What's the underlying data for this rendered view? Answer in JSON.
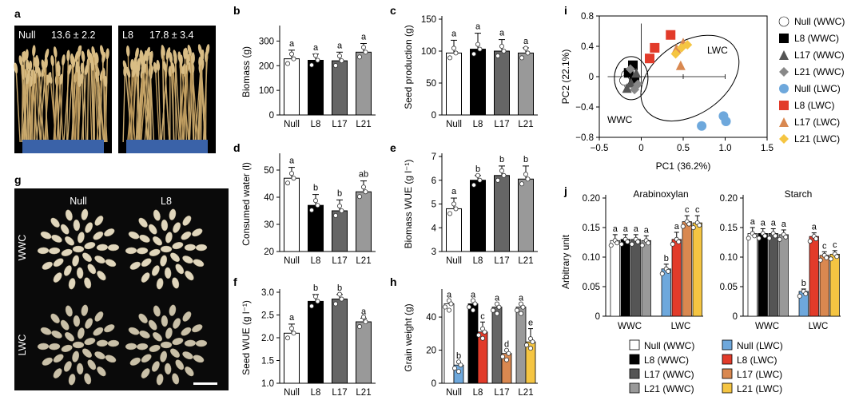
{
  "panels": {
    "a": {
      "label": "a",
      "left_name": "Null",
      "left_value": "13.6 ± 2.2",
      "right_name": "L8",
      "right_value": "17.8 ± 3.4"
    },
    "g": {
      "label": "g",
      "col_labels": [
        "Null",
        "L8"
      ],
      "row_labels": [
        "WWC",
        "LWC"
      ]
    }
  },
  "chart_data": [
    {
      "id": "b",
      "panel_label": "b",
      "type": "bar",
      "categories": [
        "Null",
        "L8",
        "L17",
        "L21"
      ],
      "values": [
        228,
        222,
        220,
        255
      ],
      "errors": [
        35,
        25,
        35,
        35
      ],
      "letters": [
        "a",
        "a",
        "a",
        "a"
      ],
      "ylabel": "Biomass (g)",
      "ylim": [
        0,
        350
      ],
      "yticks": [
        "0",
        "100",
        "200",
        "300"
      ],
      "colors": [
        "#ffffff",
        "#000000",
        "#666666",
        "#999999"
      ]
    },
    {
      "id": "c",
      "panel_label": "c",
      "type": "bar",
      "categories": [
        "Null",
        "L8",
        "L17",
        "L21"
      ],
      "values": [
        97,
        103,
        100,
        97
      ],
      "errors": [
        20,
        25,
        18,
        8
      ],
      "letters": [
        "a",
        "a",
        "a",
        "a"
      ],
      "ylabel": "Seed production (g)",
      "ylim": [
        0,
        150
      ],
      "yticks": [
        "0",
        "50",
        "100",
        "150"
      ],
      "colors": [
        "#ffffff",
        "#000000",
        "#666666",
        "#999999"
      ]
    },
    {
      "id": "d",
      "panel_label": "d",
      "type": "bar",
      "categories": [
        "Null",
        "L8",
        "L17",
        "L21"
      ],
      "values": [
        47,
        37,
        35,
        42
      ],
      "errors": [
        4,
        4,
        4,
        4
      ],
      "letters": [
        "a",
        "b",
        "b",
        "ab"
      ],
      "ylabel": "Consumed water (l)",
      "ylim": [
        20,
        55
      ],
      "yticks": [
        "20",
        "30",
        "40",
        "50"
      ],
      "colors": [
        "#ffffff",
        "#000000",
        "#666666",
        "#999999"
      ]
    },
    {
      "id": "e",
      "panel_label": "e",
      "type": "bar",
      "categories": [
        "Null",
        "L8",
        "L17",
        "L21"
      ],
      "values": [
        4.8,
        6.0,
        6.2,
        6.05
      ],
      "errors": [
        0.45,
        0.2,
        0.4,
        0.55
      ],
      "letters": [
        "a",
        "b",
        "b",
        "b"
      ],
      "ylabel": "Biomass WUE (g l⁻¹)",
      "ylim": [
        3,
        7
      ],
      "yticks": [
        "3",
        "4",
        "5",
        "6",
        "7"
      ],
      "colors": [
        "#ffffff",
        "#000000",
        "#666666",
        "#999999"
      ]
    },
    {
      "id": "f",
      "panel_label": "f",
      "type": "bar",
      "categories": [
        "Null",
        "L8",
        "L17",
        "L21"
      ],
      "values": [
        2.1,
        2.8,
        2.85,
        2.35
      ],
      "errors": [
        0.2,
        0.15,
        0.1,
        0.08
      ],
      "letters": [
        "a",
        "b",
        "b",
        "a"
      ],
      "ylabel": "Seed WUE (g l⁻¹)",
      "ylim": [
        1.0,
        3.0
      ],
      "yticks": [
        "1.0",
        "1.5",
        "2.0",
        "2.5",
        "3.0"
      ],
      "colors": [
        "#ffffff",
        "#000000",
        "#666666",
        "#999999"
      ]
    },
    {
      "id": "h",
      "panel_label": "h",
      "type": "bar",
      "categories": [
        "Null",
        "L8",
        "L17",
        "L21"
      ],
      "series": [
        {
          "name": "WWC",
          "values": [
            48,
            48,
            46,
            46
          ],
          "errors": [
            2,
            2,
            2,
            2
          ],
          "letters": [
            "a",
            "a",
            "a",
            "a"
          ],
          "colors": [
            "#ffffff",
            "#000000",
            "#666666",
            "#999999"
          ]
        },
        {
          "name": "LWC",
          "values": [
            11,
            31,
            18,
            25
          ],
          "errors": [
            2,
            6,
            2,
            8
          ],
          "letters": [
            "b",
            "c",
            "d",
            "e"
          ],
          "colors": [
            "#6ea8dc",
            "#e23b2a",
            "#d98850",
            "#f5c542"
          ]
        }
      ],
      "ylabel": "Grain weight (g)",
      "ylim": [
        0,
        55
      ],
      "yticks": [
        "0",
        "20",
        "40"
      ]
    },
    {
      "id": "i",
      "panel_label": "i",
      "type": "scatter",
      "xlabel": "PC1 (36.2%)",
      "ylabel": "PC2 (22.1%)",
      "xlim": [
        -0.5,
        1.5
      ],
      "ylim": [
        -0.8,
        0.8
      ],
      "xticks": [
        "−0.5",
        "0",
        "0.5",
        "1.0",
        "1.5"
      ],
      "yticks": [
        "−0.8",
        "−0.4",
        "0",
        "0.4",
        "0.8"
      ],
      "group_labels": [
        "WWC",
        "LWC"
      ],
      "series": [
        {
          "name": "Null (WWC)",
          "marker": "circle-open",
          "color": "#ffffff",
          "points": [
            [
              -0.18,
              0.02
            ],
            [
              -0.14,
              -0.12
            ],
            [
              -0.2,
              -0.05
            ]
          ]
        },
        {
          "name": "L8 (WWC)",
          "marker": "square",
          "color": "#000000",
          "points": [
            [
              -0.1,
              0.15
            ],
            [
              -0.15,
              0.05
            ],
            [
              -0.08,
              -0.03
            ]
          ]
        },
        {
          "name": "L17 (WWC)",
          "marker": "triangle",
          "color": "#555555",
          "points": [
            [
              -0.12,
              -0.08
            ],
            [
              -0.06,
              0.05
            ],
            [
              -0.17,
              -0.15
            ]
          ]
        },
        {
          "name": "L21 (WWC)",
          "marker": "diamond",
          "color": "#888888",
          "points": [
            [
              -0.08,
              -0.17
            ],
            [
              -0.13,
              0.1
            ],
            [
              -0.04,
              -0.1
            ]
          ]
        },
        {
          "name": "Null (LWC)",
          "marker": "circle",
          "color": "#6ea8dc",
          "points": [
            [
              0.72,
              -0.65
            ],
            [
              0.98,
              -0.52
            ],
            [
              1.01,
              -0.59
            ]
          ]
        },
        {
          "name": "L8 (LWC)",
          "marker": "square",
          "color": "#e23b2a",
          "points": [
            [
              0.1,
              0.24
            ],
            [
              0.16,
              0.38
            ],
            [
              0.35,
              0.55
            ]
          ]
        },
        {
          "name": "L17 (LWC)",
          "marker": "triangle",
          "color": "#d98850",
          "points": [
            [
              0.47,
              0.15
            ],
            [
              0.42,
              0.37
            ],
            [
              0.5,
              0.45
            ]
          ]
        },
        {
          "name": "L21 (LWC)",
          "marker": "diamond",
          "color": "#f5c542",
          "points": [
            [
              0.41,
              0.3
            ],
            [
              0.48,
              0.38
            ],
            [
              0.55,
              0.42
            ]
          ]
        }
      ]
    },
    {
      "id": "j",
      "panel_label": "j",
      "type": "bar",
      "ylabel": "Arbitrary unit",
      "ylim": [
        0,
        0.2
      ],
      "yticks": [
        "0",
        "0.05",
        "0.10",
        "0.15",
        "0.20"
      ],
      "group_labels": [
        "WWC",
        "LWC"
      ],
      "subplots": [
        {
          "title": "Arabinoxylan",
          "values": [
            0.128,
            0.13,
            0.13,
            0.128,
            0.08,
            0.13,
            0.16,
            0.158
          ],
          "errors": [
            0.01,
            0.008,
            0.008,
            0.008,
            0.008,
            0.012,
            0.01,
            0.012
          ],
          "letters": [
            "a",
            "a",
            "a",
            "a",
            "b",
            "a",
            "c",
            "c"
          ]
        },
        {
          "title": "Starch",
          "values": [
            0.14,
            0.14,
            0.14,
            0.138,
            0.042,
            0.135,
            0.103,
            0.105
          ],
          "errors": [
            0.01,
            0.008,
            0.008,
            0.008,
            0.004,
            0.006,
            0.006,
            0.006
          ],
          "letters": [
            "a",
            "a",
            "a",
            "a",
            "b",
            "a",
            "c",
            "c"
          ]
        }
      ],
      "colors": [
        "#ffffff",
        "#000000",
        "#555555",
        "#999999",
        "#6ea8dc",
        "#e23b2a",
        "#d98850",
        "#f5c542"
      ]
    }
  ],
  "legend": {
    "items": [
      "Null (WWC)",
      "L8 (WWC)",
      "L17 (WWC)",
      "L21 (WWC)",
      "Null (LWC)",
      "L8 (LWC)",
      "L17 (LWC)",
      "L21 (LWC)"
    ],
    "colors": [
      "#ffffff",
      "#000000",
      "#555555",
      "#999999",
      "#6ea8dc",
      "#e23b2a",
      "#d98850",
      "#f5c542"
    ]
  }
}
